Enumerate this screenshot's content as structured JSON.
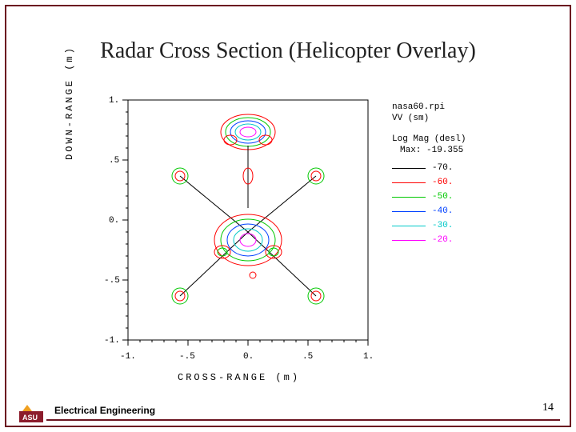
{
  "title": "Radar Cross Section (Helicopter Overlay)",
  "footer": {
    "dept": "Electrical Engineering",
    "page": "14",
    "logo_gold": "#f0a020",
    "logo_maroon": "#8c1c2c",
    "rule_color": "#6b1420"
  },
  "border_color": "#6b1420",
  "plot": {
    "x_label": "CROSS-RANGE (m)",
    "y_label": "DOWN-RANGE (m)",
    "xlim": [
      -1,
      1
    ],
    "ylim": [
      -1,
      1
    ],
    "x_ticks": [
      -1,
      -0.5,
      0,
      0.5,
      1
    ],
    "x_tick_labels": [
      "-1.",
      "-.5",
      "0.",
      ".5",
      "1."
    ],
    "y_ticks": [
      -1,
      -0.5,
      0,
      0.5,
      1
    ],
    "y_tick_labels": [
      "-1.",
      "-.5",
      "0.",
      ".5",
      "1."
    ],
    "axis_color": "#000000",
    "contour_colors": {
      "c1": "#ff0000",
      "c2": "#00aa00",
      "c3": "#0060ff",
      "c4": "#00c0c0",
      "c5": "#ff00ff",
      "c6": "#000000"
    }
  },
  "legend": {
    "header1": "nasa60.rpi",
    "header2": "VV (sm)",
    "mag_label": "Log Mag (desl)",
    "max_label": "Max: -19.355",
    "items": [
      {
        "label": "-70.",
        "color": "#000000"
      },
      {
        "label": "-60.",
        "color": "#ff0000"
      },
      {
        "label": "-50.",
        "color": "#00c800"
      },
      {
        "label": "-40.",
        "color": "#0040ff"
      },
      {
        "label": "-30.",
        "color": "#00c8c8"
      },
      {
        "label": "-20.",
        "color": "#ff00ff"
      }
    ]
  }
}
